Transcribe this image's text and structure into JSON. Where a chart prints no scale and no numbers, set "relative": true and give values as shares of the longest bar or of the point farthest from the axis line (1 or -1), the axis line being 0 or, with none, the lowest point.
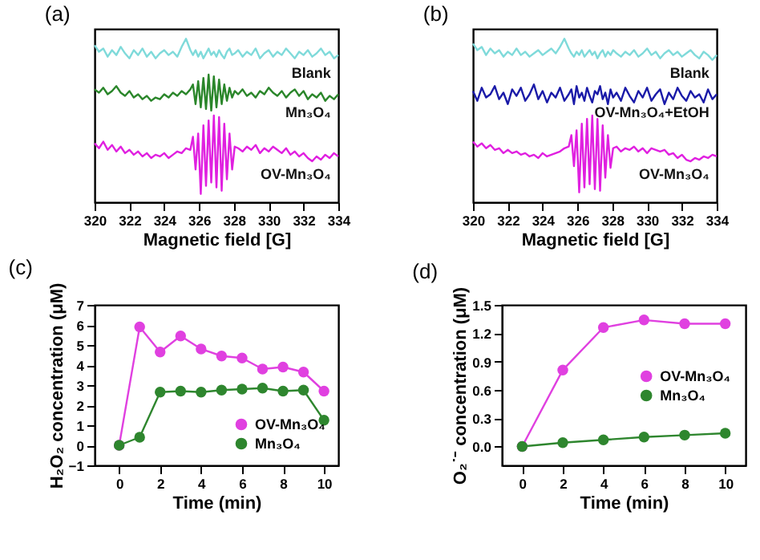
{
  "chart_data": [
    {
      "type": "line",
      "title": "(a)",
      "xlabel": "Magnetic field [G]",
      "relative": true,
      "tick_labels": "x",
      "xlim": [
        320,
        334
      ],
      "xticks": [
        320,
        322,
        324,
        326,
        328,
        330,
        332,
        334
      ],
      "x": [
        320,
        320.25,
        320.5,
        320.75,
        321,
        321.25,
        321.5,
        321.75,
        322,
        322.25,
        322.5,
        322.75,
        323,
        323.25,
        323.5,
        323.75,
        324,
        324.25,
        324.5,
        324.75,
        325,
        325.25,
        325.5,
        325.65,
        325.8,
        325.95,
        326.1,
        326.25,
        326.4,
        326.55,
        326.7,
        326.85,
        327,
        327.15,
        327.3,
        327.45,
        327.6,
        327.75,
        327.9,
        328.05,
        328.25,
        328.5,
        328.75,
        329,
        329.25,
        329.5,
        329.75,
        330,
        330.25,
        330.5,
        330.75,
        331,
        331.25,
        331.5,
        331.75,
        332,
        332.25,
        332.5,
        332.75,
        333,
        333.25,
        333.5,
        333.75,
        334
      ],
      "series": [
        {
          "name": "Blank",
          "color": "#7fdada",
          "values": [
            0.96,
            0.92,
            0.94,
            0.89,
            0.93,
            0.9,
            0.95,
            0.91,
            0.88,
            0.93,
            0.9,
            0.94,
            0.89,
            0.92,
            0.88,
            0.91,
            0.93,
            0.9,
            0.92,
            0.89,
            0.95,
            1.0,
            0.93,
            0.9,
            0.93,
            0.89,
            0.92,
            0.88,
            0.91,
            0.94,
            0.9,
            0.92,
            0.89,
            0.93,
            0.9,
            0.88,
            0.92,
            0.94,
            0.9,
            0.91,
            0.93,
            0.89,
            0.92,
            0.9,
            0.94,
            0.88,
            0.91,
            0.93,
            0.89,
            0.92,
            0.9,
            0.94,
            0.91,
            0.88,
            0.92,
            0.9,
            0.93,
            0.89,
            0.91,
            0.94,
            0.9,
            0.92,
            0.88,
            0.9
          ]
        },
        {
          "name": "Mn₃O₄",
          "color": "#2a862a",
          "values": [
            0.69,
            0.67,
            0.7,
            0.66,
            0.68,
            0.71,
            0.67,
            0.65,
            0.68,
            0.64,
            0.66,
            0.63,
            0.65,
            0.62,
            0.64,
            0.63,
            0.66,
            0.64,
            0.67,
            0.65,
            0.68,
            0.66,
            0.69,
            0.72,
            0.6,
            0.74,
            0.58,
            0.76,
            0.57,
            0.78,
            0.56,
            0.77,
            0.58,
            0.75,
            0.6,
            0.72,
            0.62,
            0.7,
            0.64,
            0.68,
            0.66,
            0.69,
            0.65,
            0.67,
            0.64,
            0.68,
            0.66,
            0.7,
            0.67,
            0.65,
            0.68,
            0.64,
            0.67,
            0.69,
            0.65,
            0.68,
            0.63,
            0.66,
            0.64,
            0.67,
            0.62,
            0.65,
            0.63,
            0.66
          ]
        },
        {
          "name": "OV-Mn₃O₄",
          "color": "#e020e0",
          "values": [
            0.36,
            0.33,
            0.37,
            0.32,
            0.35,
            0.31,
            0.34,
            0.3,
            0.32,
            0.29,
            0.31,
            0.28,
            0.3,
            0.27,
            0.29,
            0.28,
            0.3,
            0.27,
            0.29,
            0.31,
            0.3,
            0.33,
            0.32,
            0.4,
            0.2,
            0.42,
            0.05,
            0.47,
            0.1,
            0.5,
            0.12,
            0.53,
            0.09,
            0.52,
            0.07,
            0.48,
            0.14,
            0.42,
            0.2,
            0.34,
            0.33,
            0.31,
            0.34,
            0.32,
            0.35,
            0.3,
            0.33,
            0.31,
            0.34,
            0.32,
            0.3,
            0.33,
            0.29,
            0.31,
            0.28,
            0.3,
            0.27,
            0.25,
            0.28,
            0.26,
            0.29,
            0.27,
            0.3,
            0.28
          ]
        }
      ]
    },
    {
      "type": "line",
      "title": "(b)",
      "xlabel": "Magnetic field [G]",
      "relative": true,
      "tick_labels": "x",
      "xlim": [
        320,
        334
      ],
      "xticks": [
        320,
        322,
        324,
        326,
        328,
        330,
        332,
        334
      ],
      "x": [
        320,
        320.25,
        320.5,
        320.75,
        321,
        321.25,
        321.5,
        321.75,
        322,
        322.25,
        322.5,
        322.75,
        323,
        323.25,
        323.5,
        323.75,
        324,
        324.25,
        324.5,
        324.75,
        325,
        325.25,
        325.5,
        325.65,
        325.8,
        325.95,
        326.1,
        326.25,
        326.4,
        326.55,
        326.7,
        326.85,
        327,
        327.15,
        327.3,
        327.45,
        327.6,
        327.75,
        327.9,
        328.05,
        328.25,
        328.5,
        328.75,
        329,
        329.25,
        329.5,
        329.75,
        330,
        330.25,
        330.5,
        330.75,
        331,
        331.25,
        331.5,
        331.75,
        332,
        332.25,
        332.5,
        332.75,
        333,
        333.25,
        333.5,
        333.75,
        334
      ],
      "series": [
        {
          "name": "Blank",
          "color": "#7fdada",
          "values": [
            0.97,
            0.93,
            0.95,
            0.9,
            0.94,
            0.91,
            0.93,
            0.89,
            0.92,
            0.9,
            0.94,
            0.9,
            0.92,
            0.89,
            0.91,
            0.93,
            0.9,
            0.92,
            0.94,
            0.91,
            0.95,
            1.0,
            0.94,
            0.91,
            0.89,
            0.92,
            0.9,
            0.93,
            0.89,
            0.91,
            0.93,
            0.9,
            0.92,
            0.88,
            0.91,
            0.93,
            0.89,
            0.92,
            0.9,
            0.93,
            0.91,
            0.89,
            0.92,
            0.9,
            0.93,
            0.89,
            0.91,
            0.94,
            0.9,
            0.92,
            0.88,
            0.91,
            0.93,
            0.9,
            0.92,
            0.89,
            0.91,
            0.93,
            0.9,
            0.88,
            0.92,
            0.9,
            0.87,
            0.9
          ]
        },
        {
          "name": "OV-Mn₃O₄+EtOH",
          "color": "#1a1aa8",
          "values": [
            0.68,
            0.62,
            0.7,
            0.64,
            0.66,
            0.71,
            0.63,
            0.67,
            0.6,
            0.69,
            0.65,
            0.7,
            0.62,
            0.66,
            0.72,
            0.63,
            0.68,
            0.61,
            0.67,
            0.64,
            0.7,
            0.62,
            0.66,
            0.69,
            0.6,
            0.71,
            0.64,
            0.67,
            0.62,
            0.7,
            0.65,
            0.61,
            0.68,
            0.66,
            0.71,
            0.63,
            0.67,
            0.6,
            0.69,
            0.64,
            0.67,
            0.62,
            0.7,
            0.65,
            0.61,
            0.68,
            0.64,
            0.7,
            0.62,
            0.66,
            0.69,
            0.6,
            0.67,
            0.63,
            0.7,
            0.65,
            0.62,
            0.68,
            0.64,
            0.66,
            0.61,
            0.69,
            0.63,
            0.66
          ]
        },
        {
          "name": "OV-Mn₃O₄",
          "color": "#e020e0",
          "values": [
            0.37,
            0.34,
            0.36,
            0.33,
            0.35,
            0.32,
            0.33,
            0.3,
            0.32,
            0.3,
            0.31,
            0.29,
            0.3,
            0.28,
            0.29,
            0.27,
            0.3,
            0.28,
            0.29,
            0.3,
            0.31,
            0.33,
            0.34,
            0.41,
            0.22,
            0.44,
            0.06,
            0.48,
            0.09,
            0.51,
            0.11,
            0.53,
            0.08,
            0.51,
            0.07,
            0.47,
            0.15,
            0.41,
            0.21,
            0.33,
            0.34,
            0.31,
            0.33,
            0.32,
            0.34,
            0.31,
            0.33,
            0.3,
            0.33,
            0.32,
            0.31,
            0.32,
            0.29,
            0.3,
            0.27,
            0.29,
            0.26,
            0.25,
            0.27,
            0.26,
            0.28,
            0.27,
            0.29,
            0.28
          ]
        }
      ]
    },
    {
      "type": "line",
      "title": "(c)",
      "xlabel": "Time (min)",
      "ylabel": "H₂O₂ concentration (μM)",
      "legend": "bottom right",
      "marker": "circle",
      "xlim": [
        -1.2,
        10.7
      ],
      "xticks": [
        0,
        2,
        4,
        6,
        8,
        10
      ],
      "ylim": [
        -1,
        7
      ],
      "yticks": [
        -1,
        0,
        1,
        2,
        3,
        4,
        5,
        6,
        7
      ],
      "x": [
        0,
        1,
        2,
        3,
        4,
        5,
        6,
        7,
        8,
        9,
        10
      ],
      "series": [
        {
          "name": "OV-Mn₃O₄",
          "color": "#e040e0",
          "values": [
            0,
            5.9,
            4.65,
            5.45,
            4.8,
            4.45,
            4.35,
            3.8,
            3.9,
            3.65,
            2.7
          ]
        },
        {
          "name": "Mn₃O₄",
          "color": "#2e862e",
          "values": [
            0,
            0.4,
            2.65,
            2.7,
            2.65,
            2.75,
            2.8,
            2.85,
            2.7,
            2.75,
            1.25
          ]
        }
      ]
    },
    {
      "type": "line",
      "title": "(d)",
      "xlabel": "Time (min)",
      "ylabel": "O₂˙⁻ concentration (μM)",
      "legend": "right",
      "marker": "circle",
      "xlim": [
        -1,
        11
      ],
      "xticks": [
        0,
        2,
        4,
        6,
        8,
        10
      ],
      "ylim": [
        -0.2,
        1.5
      ],
      "yticks": [
        {
          "value": 0,
          "label": "0.0"
        },
        0.3,
        0.6,
        0.9,
        1.2,
        1.5
      ],
      "x": [
        0,
        2,
        4,
        6,
        8,
        10
      ],
      "series": [
        {
          "name": "OV-Mn₃O₄",
          "color": "#e040e0",
          "values": [
            0,
            0.81,
            1.26,
            1.34,
            1.3,
            1.3
          ]
        },
        {
          "name": "Mn₃O₄",
          "color": "#2e862e",
          "values": [
            0,
            0.04,
            0.07,
            0.1,
            0.12,
            0.14
          ]
        }
      ]
    }
  ]
}
